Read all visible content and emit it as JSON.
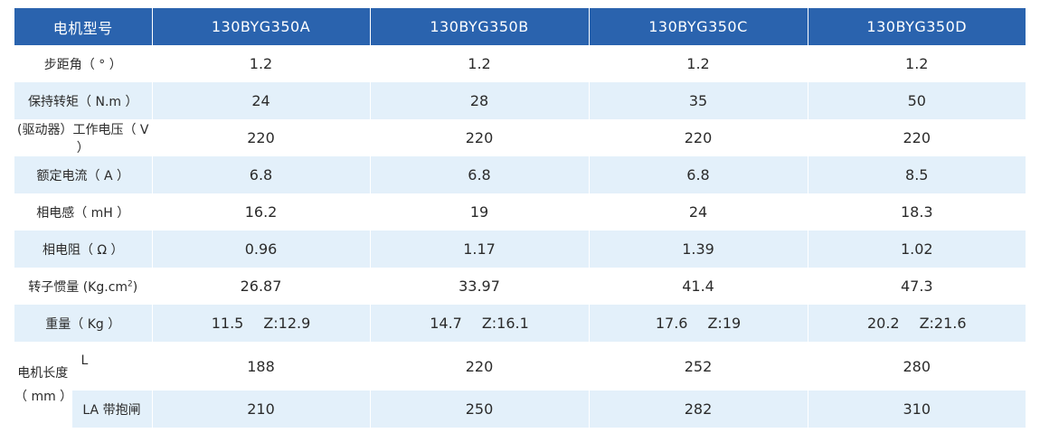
{
  "header": {
    "label": "电机型号",
    "models": [
      "130BYG350A",
      "130BYG350B",
      "130BYG350C",
      "130BYG350D"
    ]
  },
  "rows": [
    {
      "label": "步距角（ ° ）",
      "values": [
        "1.2",
        "1.2",
        "1.2",
        "1.2"
      ]
    },
    {
      "label": "保持转矩（ N.m ）",
      "values": [
        "24",
        "28",
        "35",
        "50"
      ]
    },
    {
      "label": "(驱动器）工作电压（ V ）",
      "values": [
        "220",
        "220",
        "220",
        "220"
      ]
    },
    {
      "label": "额定电流（ A ）",
      "values": [
        "6.8",
        "6.8",
        "6.8",
        "8.5"
      ]
    },
    {
      "label": "相电感（ mH ）",
      "values": [
        "16.2",
        "19",
        "24",
        "18.3"
      ]
    },
    {
      "label": "相电阻（ Ω ）",
      "values": [
        "0.96",
        "1.17",
        "1.39",
        "1.02"
      ]
    },
    {
      "label": "转子惯量 (Kg.cm",
      "label_sup": "2",
      "label_suffix": ")",
      "values": [
        "26.87",
        "33.97",
        "41.4",
        "47.3"
      ]
    }
  ],
  "weight": {
    "label": "重量（ Kg ）",
    "values": [
      {
        "main": "11.5",
        "z": "Z:12.9"
      },
      {
        "main": "14.7",
        "z": "Z:16.1"
      },
      {
        "main": "17.6",
        "z": "Z:19"
      },
      {
        "main": "20.2",
        "z": "Z:21.6"
      }
    ]
  },
  "length": {
    "label_line1": "电机长度",
    "label_line2": "（ mm ）",
    "sub_rows": [
      {
        "label": "L",
        "values": [
          "188",
          "220",
          "252",
          "280"
        ]
      },
      {
        "label": "LA 带抱闸",
        "values": [
          "210",
          "250",
          "282",
          "310"
        ]
      }
    ]
  },
  "colors": {
    "header_bg": "#2a63ae",
    "shade": "#e3f0fa"
  }
}
